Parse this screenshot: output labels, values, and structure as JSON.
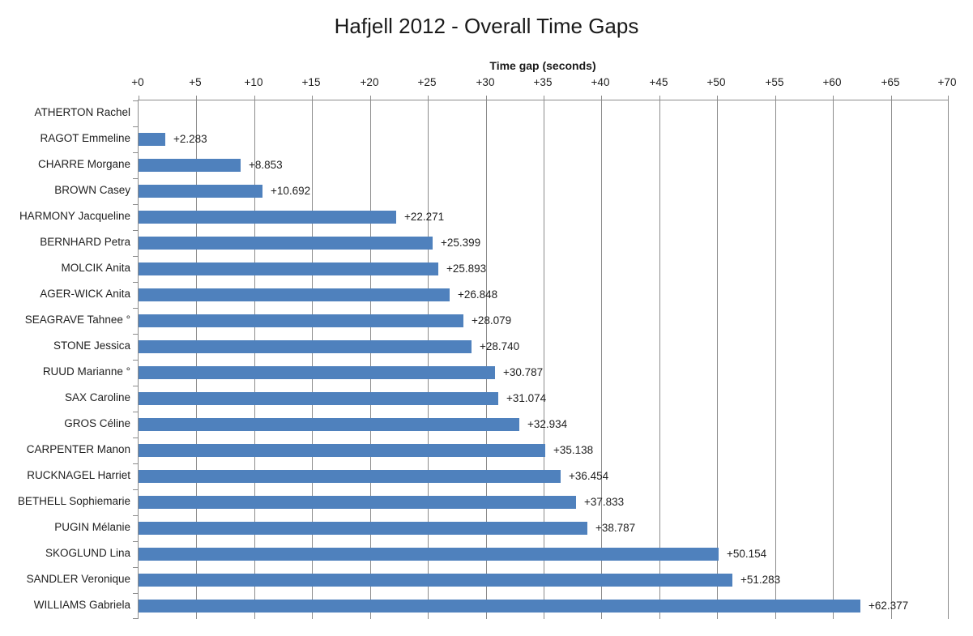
{
  "chart_data": {
    "type": "bar",
    "orientation": "horizontal",
    "title": "Hafjell 2012 - Overall Time Gaps",
    "xlabel": "Time gap (seconds)",
    "ylabel": "",
    "xlim": [
      0,
      70
    ],
    "x_tick_step": 5,
    "x_tick_labels": [
      "+0",
      "+5",
      "+10",
      "+15",
      "+20",
      "+25",
      "+30",
      "+35",
      "+40",
      "+45",
      "+50",
      "+55",
      "+60",
      "+65",
      "+70"
    ],
    "grid": true,
    "legend": false,
    "bar_color": "#4F81BD",
    "grid_color": "#8c8c8c",
    "axis_color": "#8c8c8c",
    "text_color": "#1f1f1f",
    "categories": [
      "ATHERTON Rachel",
      "RAGOT Emmeline",
      "CHARRE Morgane",
      "BROWN Casey",
      "HARMONY Jacqueline",
      "BERNHARD Petra",
      "MOLCIK Anita",
      "AGER-WICK Anita",
      "SEAGRAVE Tahnee °",
      "STONE Jessica",
      "RUUD Marianne °",
      "SAX Caroline",
      "GROS Céline",
      "CARPENTER Manon",
      "RUCKNAGEL Harriet",
      "BETHELL Sophiemarie",
      "PUGIN Mélanie",
      "SKOGLUND Lina",
      "SANDLER Veronique",
      "WILLIAMS Gabriela"
    ],
    "values": [
      0,
      2.283,
      8.853,
      10.692,
      22.271,
      25.399,
      25.893,
      26.848,
      28.079,
      28.74,
      30.787,
      31.074,
      32.934,
      35.138,
      36.454,
      37.833,
      38.787,
      50.154,
      51.283,
      62.377
    ],
    "data_labels": [
      "",
      "+2.283",
      "+8.853",
      "+10.692",
      "+22.271",
      "+25.399",
      "+25.893",
      "+26.848",
      "+28.079",
      "+28.740",
      "+30.787",
      "+31.074",
      "+32.934",
      "+35.138",
      "+36.454",
      "+37.833",
      "+38.787",
      "+50.154",
      "+51.283",
      "+62.377"
    ]
  }
}
